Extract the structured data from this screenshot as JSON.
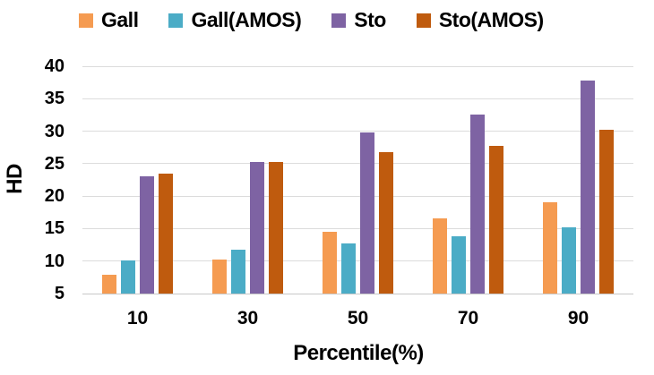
{
  "chart_data": {
    "type": "bar",
    "title": "",
    "xlabel": "Percentile(%)",
    "ylabel": "HD",
    "categories": [
      "10",
      "30",
      "50",
      "70",
      "90"
    ],
    "series": [
      {
        "name": "Gall",
        "color": "#F59B51",
        "values": [
          7.9,
          10.2,
          14.5,
          16.6,
          19.1
        ]
      },
      {
        "name": "Gall(AMOS)",
        "color": "#4BACC6",
        "values": [
          10.1,
          11.8,
          12.7,
          13.8,
          15.2
        ]
      },
      {
        "name": "Sto",
        "color": "#7E63A3",
        "values": [
          23.1,
          25.3,
          29.8,
          32.6,
          37.8
        ]
      },
      {
        "name": "Sto(AMOS)",
        "color": "#BF5B0E",
        "values": [
          23.4,
          25.3,
          26.8,
          27.8,
          30.2
        ]
      }
    ],
    "ylim": [
      5,
      40
    ],
    "ytick_step": 5,
    "yticks": [
      5,
      10,
      15,
      20,
      25,
      30,
      35,
      40
    ],
    "grid": "horizontal",
    "legend_position": "top",
    "colors": {
      "gridline": "#DCDCDC",
      "axis_line": "#C8C8C8",
      "text": "#000000",
      "background": "#FFFFFF"
    }
  }
}
